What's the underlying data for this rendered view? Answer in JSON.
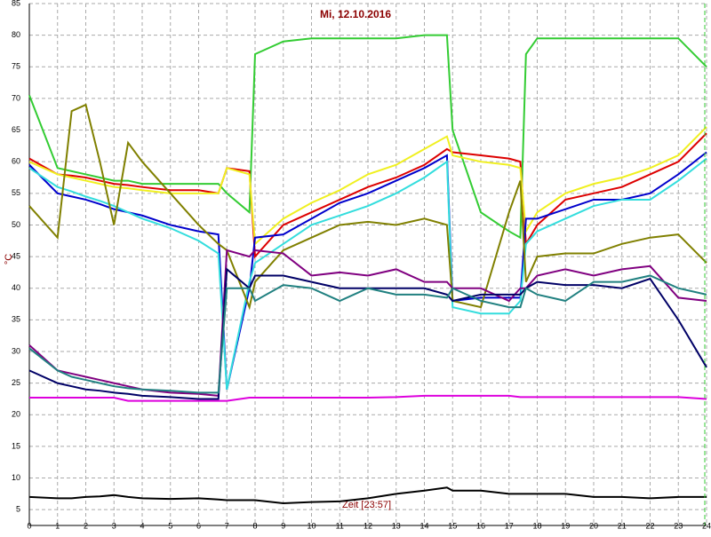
{
  "chart_data": {
    "type": "line",
    "title": "Mi, 12.10.2016",
    "y_label": "°C",
    "annotation": "Zeit [23:57]",
    "x": [
      0,
      1,
      1.5,
      2,
      2.5,
      3,
      3.5,
      4,
      5,
      6,
      6.7,
      7,
      7.8,
      8,
      9,
      10,
      11,
      12,
      13,
      14,
      14.8,
      15,
      16,
      17,
      17.4,
      17.6,
      18,
      19,
      20,
      21,
      22,
      23,
      24
    ],
    "xlim": [
      0,
      24
    ],
    "xticks": [
      0,
      1,
      2,
      3,
      4,
      5,
      6,
      7,
      8,
      9,
      10,
      11,
      12,
      13,
      14,
      15,
      16,
      17,
      18,
      19,
      20,
      21,
      22,
      23,
      24
    ],
    "ylim": [
      2.5,
      85
    ],
    "yticks": [
      5,
      10,
      15,
      20,
      25,
      30,
      35,
      40,
      45,
      50,
      55,
      60,
      65,
      70,
      75,
      80,
      85
    ],
    "grid": true,
    "series": [
      {
        "color": "#33cc33",
        "values": [
          70.5,
          59,
          58.5,
          58,
          57.5,
          57,
          57,
          56.5,
          56.5,
          56.5,
          56.5,
          55,
          52,
          77,
          79,
          79.5,
          79.5,
          79.5,
          79.5,
          80,
          80,
          65,
          52,
          49,
          48,
          77,
          79.5,
          79.5,
          79.5,
          79.5,
          79.5,
          79.5,
          75
        ]
      },
      {
        "color": "#dd0000",
        "values": [
          60.5,
          58,
          57.8,
          57.5,
          57,
          56.5,
          56.3,
          56,
          55.5,
          55.5,
          55,
          59,
          58.5,
          45,
          50,
          52,
          54,
          56,
          57.5,
          59.5,
          62,
          61.5,
          61,
          60.5,
          60,
          47,
          50,
          54,
          55,
          56,
          58,
          60,
          64.5
        ]
      },
      {
        "color": "#f0f020",
        "values": [
          60,
          58,
          57.5,
          57,
          56.5,
          56,
          55.8,
          55.5,
          55,
          55,
          55,
          59,
          58,
          47,
          51,
          53.5,
          55.5,
          58,
          59.5,
          62,
          64,
          61,
          60,
          59.5,
          59,
          49,
          52,
          55,
          56.5,
          57.5,
          59,
          61,
          65.5
        ]
      },
      {
        "color": "#0000cc",
        "values": [
          59.5,
          55,
          54.5,
          54,
          53.3,
          52.5,
          52,
          51.5,
          50,
          49,
          48.5,
          24,
          40,
          48,
          48.5,
          51,
          53.5,
          55,
          57,
          59,
          61,
          38,
          38.5,
          38.5,
          38.5,
          51,
          51,
          52.5,
          54,
          54,
          55,
          58,
          61.5
        ]
      },
      {
        "color": "#33dddd",
        "values": [
          59,
          56,
          55.3,
          54.5,
          53.8,
          53,
          52,
          51,
          49.5,
          47.5,
          45.5,
          24,
          41,
          44,
          47,
          50,
          51.5,
          53,
          55,
          57.5,
          60,
          37,
          36,
          36,
          38,
          47,
          49,
          51,
          53,
          54,
          54,
          57,
          60.5
        ]
      },
      {
        "color": "#808000",
        "values": [
          53,
          48,
          68,
          69,
          60,
          50,
          63,
          60,
          55,
          50,
          47,
          46,
          37,
          41,
          46,
          48,
          50,
          50.5,
          50,
          51,
          50,
          38,
          37,
          52,
          57,
          41,
          45,
          45.5,
          45.5,
          47,
          48,
          48.5,
          44
        ]
      },
      {
        "color": "#800080",
        "values": [
          31,
          27,
          26.5,
          26,
          25.5,
          25,
          24.5,
          24,
          23.5,
          23.3,
          23,
          46,
          45,
          46,
          45.5,
          42,
          42.5,
          42,
          43,
          41,
          41,
          40,
          40,
          38,
          40,
          40,
          42,
          43,
          42,
          43,
          43.5,
          38.5,
          38
        ]
      },
      {
        "color": "#000066",
        "values": [
          27,
          25,
          24.5,
          24,
          23.8,
          23.5,
          23.3,
          23,
          22.8,
          22.5,
          22.5,
          43,
          40,
          42,
          42,
          41,
          40,
          40,
          40,
          40,
          39,
          38,
          39,
          39,
          39,
          40,
          41,
          40.5,
          40.5,
          40,
          41.5,
          35,
          27.5
        ]
      },
      {
        "color": "#208080",
        "values": [
          30.5,
          27,
          26,
          25.5,
          25,
          24.5,
          24.2,
          24,
          23.8,
          23.5,
          23.5,
          40,
          40,
          38,
          40.5,
          40,
          38,
          40,
          39,
          39,
          38.5,
          40,
          38,
          37,
          37,
          40,
          39,
          38,
          41,
          41,
          42,
          40,
          39
        ]
      },
      {
        "color": "#dd00dd",
        "values": [
          22.7,
          22.7,
          22.7,
          22.7,
          22.7,
          22.7,
          22.2,
          22.2,
          22.2,
          22.2,
          22.2,
          22.2,
          22.7,
          22.7,
          22.7,
          22.7,
          22.7,
          22.7,
          22.8,
          23,
          23,
          23,
          23,
          23,
          22.8,
          22.8,
          22.8,
          22.8,
          22.8,
          22.8,
          22.8,
          22.8,
          22.5
        ]
      },
      {
        "color": "#000000",
        "values": [
          7,
          6.8,
          6.8,
          7,
          7.1,
          7.3,
          7,
          6.8,
          6.7,
          6.8,
          6.6,
          6.5,
          6.5,
          6.5,
          6,
          6.2,
          6.3,
          6.8,
          7.5,
          8,
          8.5,
          8,
          8,
          7.5,
          7.5,
          7.5,
          7.5,
          7.5,
          7,
          7,
          6.8,
          7,
          7
        ]
      }
    ]
  }
}
